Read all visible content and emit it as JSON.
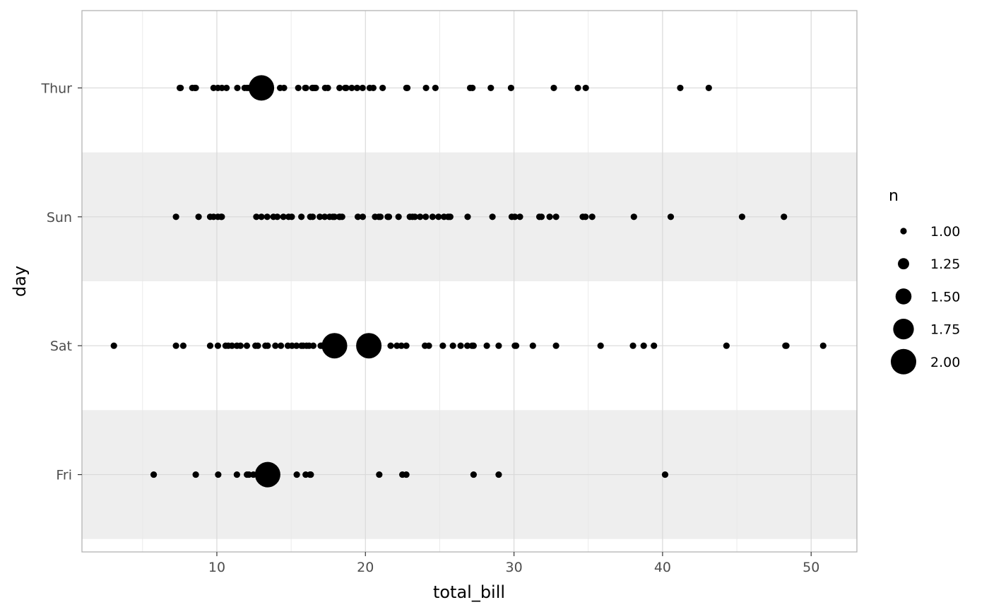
{
  "chart_data": {
    "type": "scatter",
    "xlabel": "total_bill",
    "ylabel": "day",
    "xlim": [
      0.92,
      53.08
    ],
    "x_ticks": [
      10,
      20,
      30,
      40,
      50
    ],
    "y_categories": [
      "Fri",
      "Sat",
      "Sun",
      "Thur"
    ],
    "banded_rows": [
      "Sun",
      "Fri"
    ],
    "grid": true,
    "legend": {
      "title": "n",
      "position": "right",
      "entries": [
        {
          "label": "1.00",
          "value": 1.0
        },
        {
          "label": "1.25",
          "value": 1.25
        },
        {
          "label": "1.50",
          "value": 1.5
        },
        {
          "label": "1.75",
          "value": 1.75
        },
        {
          "label": "2.00",
          "value": 2.0
        }
      ]
    },
    "colors": {
      "point": "#000000",
      "band": "#eeeeee",
      "grid": "#d9d9d9",
      "border": "#b3b3b3"
    },
    "points": {
      "Thur": [
        [
          7.51,
          1
        ],
        [
          7.56,
          1
        ],
        [
          8.35,
          1
        ],
        [
          8.52,
          1
        ],
        [
          8.58,
          1
        ],
        [
          9.78,
          1
        ],
        [
          10.07,
          1
        ],
        [
          10.34,
          1
        ],
        [
          10.65,
          1
        ],
        [
          11.38,
          1
        ],
        [
          11.87,
          1
        ],
        [
          12.03,
          1
        ],
        [
          12.16,
          1
        ],
        [
          13.0,
          2
        ],
        [
          14.26,
          1
        ],
        [
          14.52,
          1
        ],
        [
          15.48,
          1
        ],
        [
          15.95,
          1
        ],
        [
          16.0,
          1
        ],
        [
          16.43,
          1
        ],
        [
          16.47,
          1
        ],
        [
          16.58,
          1
        ],
        [
          16.66,
          1
        ],
        [
          17.29,
          1
        ],
        [
          17.47,
          1
        ],
        [
          18.26,
          1
        ],
        [
          18.64,
          1
        ],
        [
          18.71,
          1
        ],
        [
          19.08,
          1
        ],
        [
          19.44,
          1
        ],
        [
          19.81,
          1
        ],
        [
          20.29,
          1
        ],
        [
          20.53,
          1
        ],
        [
          21.16,
          1
        ],
        [
          22.76,
          1
        ],
        [
          22.82,
          1
        ],
        [
          24.08,
          1
        ],
        [
          24.71,
          1
        ],
        [
          27.05,
          1
        ],
        [
          27.2,
          1
        ],
        [
          28.44,
          1
        ],
        [
          29.8,
          1
        ],
        [
          32.68,
          1
        ],
        [
          34.3,
          1
        ],
        [
          34.83,
          1
        ],
        [
          41.19,
          1
        ],
        [
          43.11,
          1
        ]
      ],
      "Sun": [
        [
          7.25,
          1
        ],
        [
          8.77,
          1
        ],
        [
          9.55,
          1
        ],
        [
          9.78,
          1
        ],
        [
          10.07,
          1
        ],
        [
          10.29,
          1
        ],
        [
          10.33,
          1
        ],
        [
          12.66,
          1
        ],
        [
          13.0,
          1
        ],
        [
          13.39,
          1
        ],
        [
          13.81,
          1
        ],
        [
          14.07,
          1
        ],
        [
          14.48,
          1
        ],
        [
          14.83,
          1
        ],
        [
          15.04,
          1
        ],
        [
          15.69,
          1
        ],
        [
          16.29,
          1
        ],
        [
          16.45,
          1
        ],
        [
          16.93,
          1
        ],
        [
          17.26,
          1
        ],
        [
          17.59,
          1
        ],
        [
          17.81,
          1
        ],
        [
          17.92,
          1
        ],
        [
          18.24,
          1
        ],
        [
          18.29,
          1
        ],
        [
          18.43,
          1
        ],
        [
          19.49,
          1
        ],
        [
          19.82,
          1
        ],
        [
          20.65,
          1
        ],
        [
          20.9,
          1
        ],
        [
          21.01,
          1
        ],
        [
          21.5,
          1
        ],
        [
          21.58,
          1
        ],
        [
          22.23,
          1
        ],
        [
          22.99,
          1
        ],
        [
          23.17,
          1
        ],
        [
          23.33,
          1
        ],
        [
          23.68,
          1
        ],
        [
          24.06,
          1
        ],
        [
          24.52,
          1
        ],
        [
          24.92,
          1
        ],
        [
          25.29,
          1
        ],
        [
          25.56,
          1
        ],
        [
          25.71,
          1
        ],
        [
          26.88,
          1
        ],
        [
          28.55,
          1
        ],
        [
          29.85,
          1
        ],
        [
          30.06,
          1
        ],
        [
          30.4,
          1
        ],
        [
          31.71,
          1
        ],
        [
          31.85,
          1
        ],
        [
          32.4,
          1
        ],
        [
          32.83,
          1
        ],
        [
          34.63,
          1
        ],
        [
          34.81,
          1
        ],
        [
          35.26,
          1
        ],
        [
          38.07,
          1
        ],
        [
          40.55,
          1
        ],
        [
          45.35,
          1
        ],
        [
          48.17,
          1
        ]
      ],
      "Sat": [
        [
          3.07,
          1
        ],
        [
          7.25,
          1
        ],
        [
          7.74,
          1
        ],
        [
          9.55,
          1
        ],
        [
          10.07,
          1
        ],
        [
          10.59,
          1
        ],
        [
          10.77,
          1
        ],
        [
          11.02,
          1
        ],
        [
          11.35,
          1
        ],
        [
          11.59,
          1
        ],
        [
          12.02,
          1
        ],
        [
          12.6,
          1
        ],
        [
          12.76,
          1
        ],
        [
          13.27,
          1
        ],
        [
          13.42,
          1
        ],
        [
          13.94,
          1
        ],
        [
          14.31,
          1
        ],
        [
          14.78,
          1
        ],
        [
          15.06,
          1
        ],
        [
          15.36,
          1
        ],
        [
          15.69,
          1
        ],
        [
          15.81,
          1
        ],
        [
          16.04,
          1
        ],
        [
          16.21,
          1
        ],
        [
          16.49,
          1
        ],
        [
          16.99,
          1
        ],
        [
          17.07,
          1
        ],
        [
          17.31,
          1
        ],
        [
          17.82,
          1
        ],
        [
          17.92,
          2
        ],
        [
          18.35,
          1
        ],
        [
          20.23,
          2
        ],
        [
          21.7,
          1
        ],
        [
          22.12,
          1
        ],
        [
          22.42,
          1
        ],
        [
          22.75,
          1
        ],
        [
          24.01,
          1
        ],
        [
          24.27,
          1
        ],
        [
          25.21,
          1
        ],
        [
          25.89,
          1
        ],
        [
          26.41,
          1
        ],
        [
          26.86,
          1
        ],
        [
          27.18,
          1
        ],
        [
          27.28,
          1
        ],
        [
          28.17,
          1
        ],
        [
          28.97,
          1
        ],
        [
          30.06,
          1
        ],
        [
          30.14,
          1
        ],
        [
          31.27,
          1
        ],
        [
          32.83,
          1
        ],
        [
          35.83,
          1
        ],
        [
          38.01,
          1
        ],
        [
          38.73,
          1
        ],
        [
          39.42,
          1
        ],
        [
          44.3,
          1
        ],
        [
          48.27,
          1
        ],
        [
          48.33,
          1
        ],
        [
          50.81,
          1
        ]
      ],
      "Fri": [
        [
          5.75,
          1
        ],
        [
          8.58,
          1
        ],
        [
          10.09,
          1
        ],
        [
          11.35,
          1
        ],
        [
          12.03,
          1
        ],
        [
          12.16,
          1
        ],
        [
          12.46,
          1
        ],
        [
          13.42,
          2
        ],
        [
          15.38,
          1
        ],
        [
          15.98,
          1
        ],
        [
          16.27,
          1
        ],
        [
          16.32,
          1
        ],
        [
          20.93,
          1
        ],
        [
          22.49,
          1
        ],
        [
          22.75,
          1
        ],
        [
          27.28,
          1
        ],
        [
          28.97,
          1
        ],
        [
          40.17,
          1
        ]
      ]
    }
  }
}
